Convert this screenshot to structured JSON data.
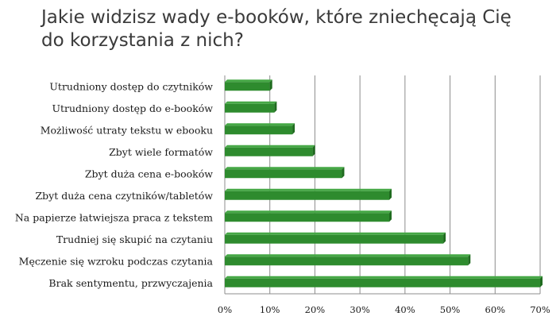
{
  "chart_data": {
    "type": "bar",
    "orientation": "horizontal",
    "title_lines": [
      "Jakie widzisz wady e-booków, które zniechęcają Cię",
      "do korzystania z nich?"
    ],
    "categories": [
      "Utrudniony dostęp do czytników",
      "Utrudniony dostęp do e-booków",
      "Możliwość utraty tekstu w ebooku",
      "Zbyt wiele formatów",
      "Zbyt duża cena e-booków",
      "Zbyt duża cena czytników/tabletów",
      "Na papierze łatwiejsza praca z tekstem",
      "Trudniej się skupić na czytaniu",
      "Męczenie się wzroku podczas czytania",
      "Brak sentymentu, przwyczajenia"
    ],
    "values": [
      10,
      11,
      15,
      19.5,
      26,
      36.5,
      36.5,
      48.5,
      54,
      70
    ],
    "xlim": [
      0,
      70
    ],
    "ticks": [
      "0%",
      "10%",
      "20%",
      "30%",
      "40%",
      "50%",
      "60%",
      "70%"
    ],
    "grid": true,
    "bar_color": "#2e8b2e",
    "bar_dark": "#1f6b1f",
    "bar_light": "#46a846",
    "grid_color": "#8c8c8c"
  }
}
